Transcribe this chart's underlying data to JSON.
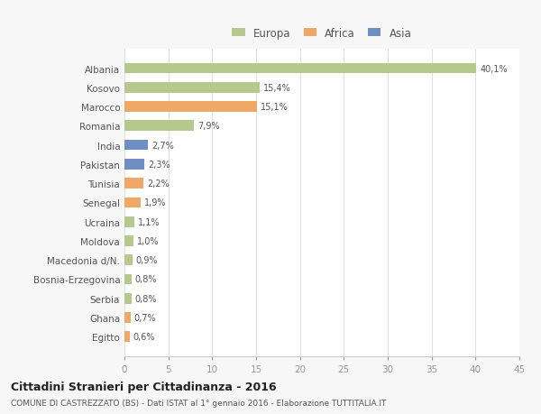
{
  "countries": [
    "Albania",
    "Kosovo",
    "Marocco",
    "Romania",
    "India",
    "Pakistan",
    "Tunisia",
    "Senegal",
    "Ucraina",
    "Moldova",
    "Macedonia d/N.",
    "Bosnia-Erzegovina",
    "Serbia",
    "Ghana",
    "Egitto"
  ],
  "values": [
    40.1,
    15.4,
    15.1,
    7.9,
    2.7,
    2.3,
    2.2,
    1.9,
    1.1,
    1.0,
    0.9,
    0.8,
    0.8,
    0.7,
    0.6
  ],
  "labels": [
    "40,1%",
    "15,4%",
    "15,1%",
    "7,9%",
    "2,7%",
    "2,3%",
    "2,2%",
    "1,9%",
    "1,1%",
    "1,0%",
    "0,9%",
    "0,8%",
    "0,8%",
    "0,7%",
    "0,6%"
  ],
  "colors": [
    "#b5c98e",
    "#b5c98e",
    "#f0a868",
    "#b5c98e",
    "#6e8ec4",
    "#6e8ec4",
    "#f0a868",
    "#f0a868",
    "#b5c98e",
    "#b5c98e",
    "#b5c98e",
    "#b5c98e",
    "#b5c98e",
    "#f0a868",
    "#f0a868"
  ],
  "legend_labels": [
    "Europa",
    "Africa",
    "Asia"
  ],
  "legend_colors": [
    "#b5c98e",
    "#f0a868",
    "#6e8ec4"
  ],
  "title": "Cittadini Stranieri per Cittadinanza - 2016",
  "subtitle": "COMUNE DI CASTREZZATO (BS) - Dati ISTAT al 1° gennaio 2016 - Elaborazione TUTTITALIA.IT",
  "xlim": [
    0,
    45
  ],
  "xticks": [
    0,
    5,
    10,
    15,
    20,
    25,
    30,
    35,
    40,
    45
  ],
  "bg_color": "#f7f7f7",
  "plot_bg_color": "#ffffff",
  "bar_height": 0.55
}
